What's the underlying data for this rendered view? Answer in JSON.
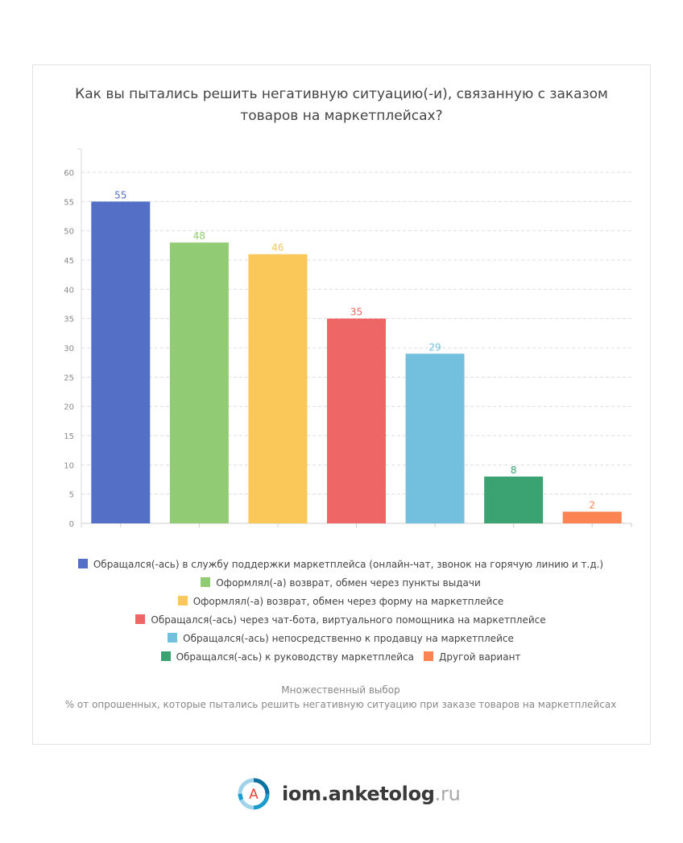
{
  "title_lines": [
    "Как вы пытались решить негативную ситуацию(-и), связанную с заказом",
    "товаров на маркетплейсах?"
  ],
  "chart_data": {
    "type": "bar",
    "title": "Как вы пытались решить негативную ситуацию(-и), связанную с заказом товаров на маркетплейсах?",
    "categories": [
      "Обращался(-ась) в службу поддержки маркетплейса (онлайн-чат, звонок на горячую линию и т.д.)",
      "Оформлял(-а) возврат, обмен через пункты выдачи",
      "Оформлял(-а) возврат, обмен через форму на маркетплейсе",
      "Обращался(-ась) через чат-бота, виртуального помощника на маркетплейсе",
      "Обращался(-ась) непосредственно к продавцу на маркетплейсе",
      "Обращался(-ась) к руководству маркетплейса",
      "Другой вариант"
    ],
    "values": [
      55,
      48,
      46,
      35,
      29,
      8,
      2
    ],
    "colors": [
      "#5470c6",
      "#91cc75",
      "#fac858",
      "#ee6666",
      "#73c0de",
      "#3ba272",
      "#fc8452"
    ],
    "ylim": [
      0,
      60
    ],
    "yticks": [
      0,
      5,
      10,
      15,
      20,
      25,
      30,
      35,
      40,
      45,
      50,
      55,
      60
    ],
    "grid": true,
    "data_labels": true,
    "legend_position": "bottom"
  },
  "legend_rows": [
    [
      0
    ],
    [
      1
    ],
    [
      2
    ],
    [
      3
    ],
    [
      4
    ],
    [
      5,
      6
    ]
  ],
  "notes": {
    "line1": "Множественный выбор",
    "line2": "% от опрошенных, которые пытались решить негативную ситуацию при заказе товаров на маркетплейсах"
  },
  "brand": {
    "logo_letter": "А",
    "name": "iom.anketolog",
    "tld": ".ru",
    "colors": {
      "ring": "#1a9dcc",
      "ring_dark": "#0b6fa0",
      "letter": "#e8443a"
    }
  }
}
